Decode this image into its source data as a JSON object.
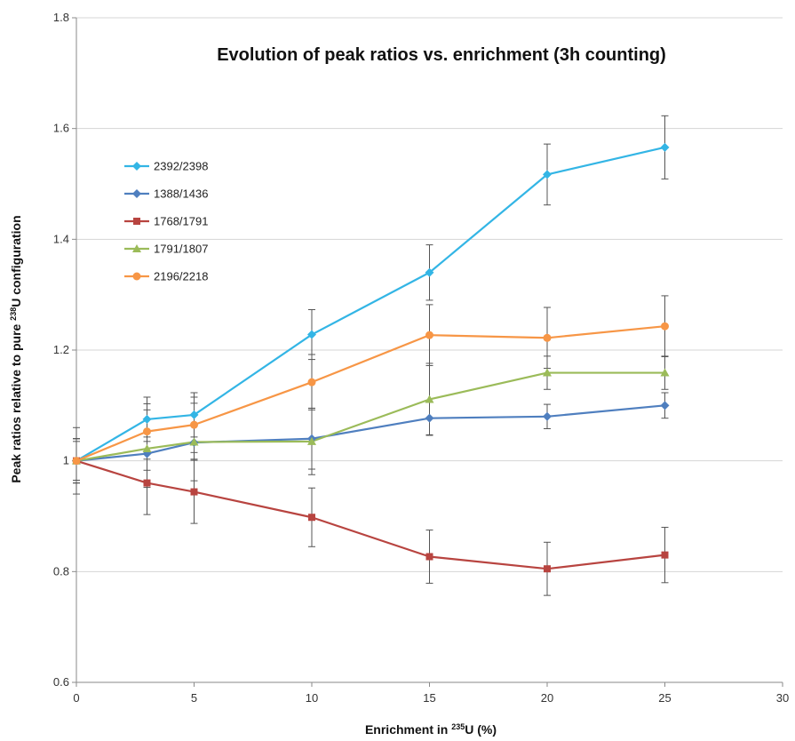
{
  "chart_data": {
    "type": "line",
    "title": "Evolution of peak ratios vs. enrichment (3h counting)",
    "xlabel": {
      "prefix": "Enrichment in ",
      "sup": "235",
      "suffix": "U (%)"
    },
    "ylabel": {
      "prefix": "Peak ratios relative to pure ",
      "sup": "238",
      "suffix": "U configuration"
    },
    "xlim": [
      0,
      30
    ],
    "ylim": [
      0.6,
      1.8
    ],
    "xticks": [
      "0",
      "5",
      "10",
      "15",
      "20",
      "25",
      "30"
    ],
    "yticks": [
      "0.6",
      "0.8",
      "1",
      "1.2",
      "1.4",
      "1.6",
      "1.8"
    ],
    "grid": "horizontal",
    "legend_position": "upper-left",
    "x": [
      0,
      3,
      5,
      10,
      15,
      20,
      25
    ],
    "series": [
      {
        "name": "2392/2398",
        "color": "#33B5E5",
        "marker": "diamond",
        "values": [
          1.0,
          1.075,
          1.083,
          1.228,
          1.34,
          1.517,
          1.566
        ],
        "errors": [
          0.04,
          0.04,
          0.04,
          0.045,
          0.05,
          0.055,
          0.057
        ]
      },
      {
        "name": "1388/1436",
        "color": "#4F7FBF",
        "marker": "diamond",
        "values": [
          1.0,
          1.013,
          1.033,
          1.04,
          1.077,
          1.08,
          1.1
        ],
        "errors": [
          0.035,
          0.03,
          0.03,
          0.055,
          0.03,
          0.022,
          0.023
        ]
      },
      {
        "name": "1768/1791",
        "color": "#B84440",
        "marker": "square",
        "values": [
          1.0,
          0.96,
          0.944,
          0.898,
          0.827,
          0.805,
          0.83
        ],
        "errors": [
          0.04,
          0.057,
          0.057,
          0.053,
          0.048,
          0.048,
          0.05
        ]
      },
      {
        "name": "1791/1807",
        "color": "#9BBB59",
        "marker": "triangle",
        "values": [
          1.0,
          1.022,
          1.034,
          1.035,
          1.111,
          1.159,
          1.159
        ],
        "errors": [
          0.06,
          0.07,
          0.07,
          0.06,
          0.065,
          0.03,
          0.03
        ]
      },
      {
        "name": "2196/2218",
        "color": "#F79646",
        "marker": "circle",
        "values": [
          1.0,
          1.053,
          1.065,
          1.142,
          1.227,
          1.222,
          1.243
        ],
        "errors": [
          0.04,
          0.05,
          0.05,
          0.05,
          0.055,
          0.055,
          0.055
        ]
      }
    ]
  }
}
